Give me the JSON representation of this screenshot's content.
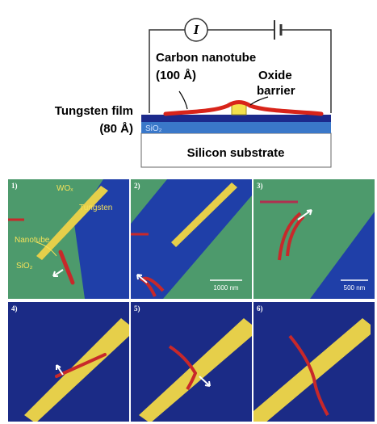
{
  "diagram": {
    "current_symbol": "I",
    "nanotube_label": "Carbon nanotube",
    "nanotube_size": "(100 Å)",
    "barrier_label_1": "Oxide",
    "barrier_label_2": "barrier",
    "film_label": "Tungsten film",
    "film_thickness": "(80 Å)",
    "oxide_layer": "SiO₂",
    "substrate_label": "Silicon substrate"
  },
  "panels": [
    {
      "label": "1)",
      "annotations": [
        "WOₓ",
        "Tungsten",
        "Nanotube",
        "SiO₂"
      ]
    },
    {
      "label": "2)",
      "scale_bar": "1000 nm"
    },
    {
      "label": "3)",
      "scale_bar": "500 nm"
    },
    {
      "label": "4)"
    },
    {
      "label": "5)"
    },
    {
      "label": "6)"
    }
  ]
}
